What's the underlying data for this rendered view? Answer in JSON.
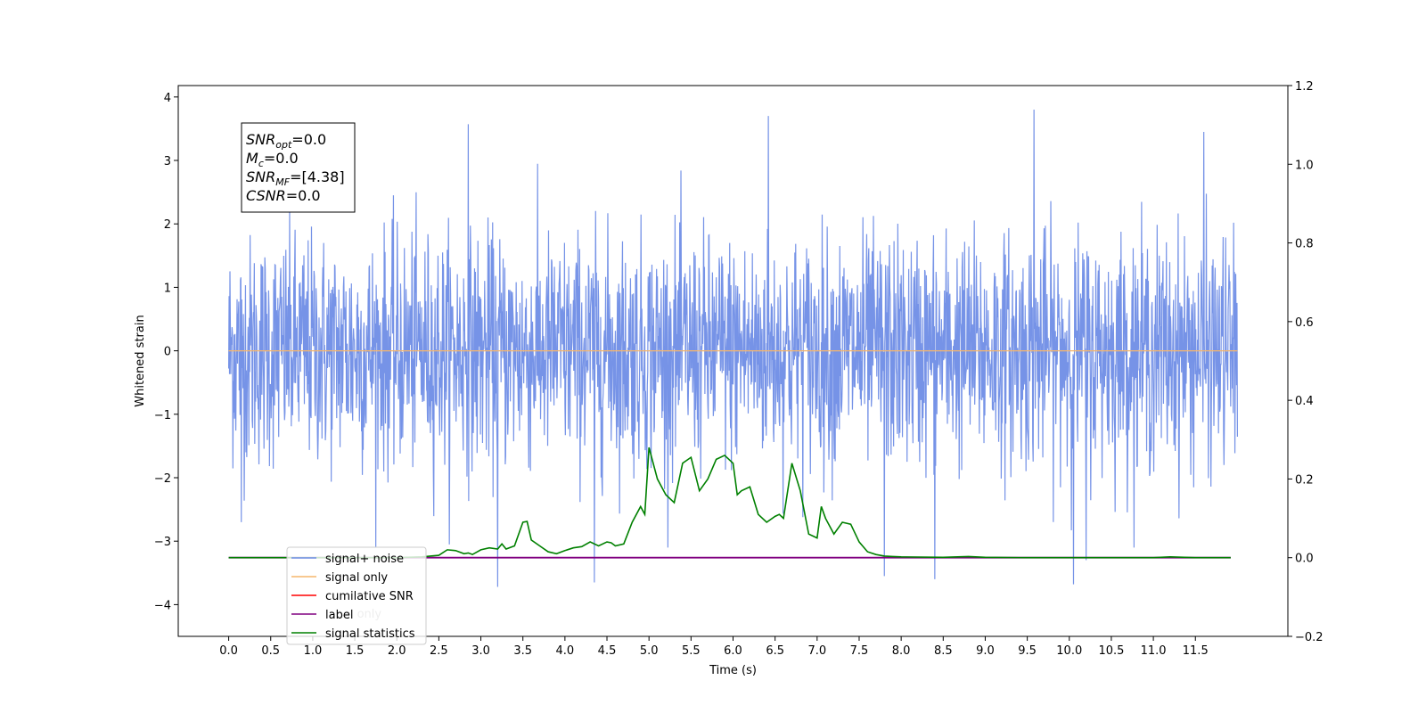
{
  "chart_data": {
    "type": "line",
    "title": "",
    "xlabel": "Time (s)",
    "ylabel": "Whitened strain",
    "xlim": [
      -0.6,
      12.6
    ],
    "ylim": [
      -4.5,
      4.18
    ],
    "y2lim": [
      -0.2,
      1.2
    ],
    "x_ticks": [
      0.0,
      0.5,
      1.0,
      1.5,
      2.0,
      2.5,
      3.0,
      3.5,
      4.0,
      4.5,
      5.0,
      5.5,
      6.0,
      6.5,
      7.0,
      7.5,
      8.0,
      8.5,
      9.0,
      9.5,
      10.0,
      10.5,
      11.0,
      11.5
    ],
    "x_tick_labels": [
      "0.0",
      "0.5",
      "1.0",
      "1.5",
      "2.0",
      "2.5",
      "3.0",
      "3.5",
      "4.0",
      "4.5",
      "5.0",
      "5.5",
      "6.0",
      "6.5",
      "7.0",
      "7.5",
      "8.0",
      "8.5",
      "9.0",
      "9.5",
      "10.0",
      "10.5",
      "11.0",
      "11.5"
    ],
    "y_ticks": [
      -4,
      -3,
      -2,
      -1,
      0,
      1,
      2,
      3,
      4
    ],
    "y_tick_labels": [
      "−4",
      "−3",
      "−2",
      "−1",
      "0",
      "1",
      "2",
      "3",
      "4"
    ],
    "y2_ticks": [
      -0.2,
      0.0,
      0.2,
      0.4,
      0.6,
      0.8,
      1.0,
      1.2
    ],
    "y2_tick_labels": [
      "−0.2",
      "0.0",
      "0.2",
      "0.4",
      "0.6",
      "0.8",
      "1.0",
      "1.2"
    ],
    "grid": false,
    "legend_position": "lower-left",
    "noise": {
      "name": "signal+ noise",
      "color": "#6f8de6",
      "x_range": [
        0.0,
        12.0
      ],
      "typical_amplitude": 1.0,
      "max": 3.8,
      "min": -3.72,
      "spikes": [
        [
          2.85,
          3.57
        ],
        [
          6.42,
          3.7
        ],
        [
          9.58,
          3.8
        ],
        [
          11.6,
          3.45
        ],
        [
          3.2,
          -3.72
        ],
        [
          10.05,
          -3.68
        ],
        [
          4.35,
          -3.65
        ],
        [
          7.8,
          -3.55
        ],
        [
          8.4,
          -3.6
        ],
        [
          10.2,
          -3.3
        ],
        [
          0.15,
          -2.7
        ]
      ]
    },
    "series": [
      {
        "name": "signal only",
        "color": "#f5b56b",
        "axis": "left",
        "x": [
          0.0,
          12.0
        ],
        "y": [
          0.0,
          0.0
        ]
      },
      {
        "name": "cumilative SNR",
        "color": "#ff0000",
        "axis": "left",
        "x": [],
        "y": []
      },
      {
        "name": "label",
        "color": "#800080",
        "axis": "right",
        "x": [
          0.0,
          11.92
        ],
        "y": [
          0.0,
          0.0
        ]
      },
      {
        "name": "signal statistics",
        "color": "#008000",
        "axis": "right",
        "x": [
          0.0,
          0.5,
          1.0,
          1.5,
          2.0,
          2.3,
          2.5,
          2.6,
          2.7,
          2.8,
          2.85,
          2.9,
          3.0,
          3.1,
          3.2,
          3.25,
          3.3,
          3.4,
          3.5,
          3.55,
          3.6,
          3.7,
          3.8,
          3.9,
          4.0,
          4.1,
          4.2,
          4.3,
          4.4,
          4.5,
          4.55,
          4.6,
          4.7,
          4.8,
          4.9,
          4.95,
          5.0,
          5.1,
          5.2,
          5.3,
          5.4,
          5.5,
          5.6,
          5.7,
          5.8,
          5.9,
          6.0,
          6.05,
          6.1,
          6.2,
          6.3,
          6.4,
          6.5,
          6.55,
          6.6,
          6.7,
          6.8,
          6.9,
          7.0,
          7.05,
          7.1,
          7.2,
          7.3,
          7.4,
          7.5,
          7.6,
          7.7,
          7.8,
          7.9,
          8.0,
          8.5,
          8.8,
          9.0,
          9.5,
          10.0,
          10.5,
          11.0,
          11.2,
          11.5,
          11.92
        ],
        "y": [
          0.0,
          0.0,
          0.0,
          0.0,
          0.0,
          0.002,
          0.006,
          0.02,
          0.018,
          0.01,
          0.012,
          0.008,
          0.02,
          0.025,
          0.022,
          0.035,
          0.022,
          0.03,
          0.09,
          0.092,
          0.045,
          0.03,
          0.015,
          0.01,
          0.018,
          0.025,
          0.028,
          0.04,
          0.03,
          0.04,
          0.038,
          0.03,
          0.035,
          0.09,
          0.13,
          0.11,
          0.28,
          0.2,
          0.16,
          0.14,
          0.24,
          0.255,
          0.17,
          0.2,
          0.25,
          0.26,
          0.24,
          0.16,
          0.17,
          0.18,
          0.11,
          0.09,
          0.105,
          0.11,
          0.1,
          0.24,
          0.17,
          0.06,
          0.05,
          0.13,
          0.1,
          0.06,
          0.09,
          0.085,
          0.04,
          0.015,
          0.008,
          0.004,
          0.003,
          0.002,
          0.001,
          0.003,
          0.001,
          0.0,
          0.0,
          0.0,
          0.0,
          0.002,
          0.0,
          0.0
        ]
      }
    ],
    "annotations": [
      {
        "base": "SNR",
        "sub": "opt",
        "value": "=0.0"
      },
      {
        "base": "M",
        "sub": "c",
        "value": "=0.0"
      },
      {
        "base": "SNR",
        "sub": "MF",
        "value": "=[4.38]"
      },
      {
        "base": "CSNR",
        "sub": "",
        "value": "=0.0"
      }
    ],
    "legend": [
      "signal+ noise",
      "signal only",
      "cumilative SNR",
      "label",
      "signal statistics"
    ],
    "legend_overlapped_text": "label only"
  }
}
